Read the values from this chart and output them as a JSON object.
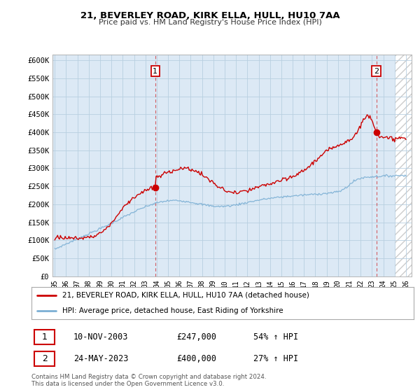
{
  "title": "21, BEVERLEY ROAD, KIRK ELLA, HULL, HU10 7AA",
  "subtitle": "Price paid vs. HM Land Registry's House Price Index (HPI)",
  "ylabel_ticks": [
    "£0",
    "£50K",
    "£100K",
    "£150K",
    "£200K",
    "£250K",
    "£300K",
    "£350K",
    "£400K",
    "£450K",
    "£500K",
    "£550K",
    "£600K"
  ],
  "ytick_values": [
    0,
    50000,
    100000,
    150000,
    200000,
    250000,
    300000,
    350000,
    400000,
    450000,
    500000,
    550000,
    600000
  ],
  "ylim": [
    0,
    615000
  ],
  "xlim_start": 1995.0,
  "xlim_end": 2026.5,
  "red_line_color": "#cc0000",
  "blue_line_color": "#7bafd4",
  "plot_bg_color": "#dce9f5",
  "sale1_x": 2003.87,
  "sale1_y": 247000,
  "sale2_x": 2023.38,
  "sale2_y": 400000,
  "legend_line1": "21, BEVERLEY ROAD, KIRK ELLA, HULL, HU10 7AA (detached house)",
  "legend_line2": "HPI: Average price, detached house, East Riding of Yorkshire",
  "footnote_line1": "Contains HM Land Registry data © Crown copyright and database right 2024.",
  "footnote_line2": "This data is licensed under the Open Government Licence v3.0.",
  "table_row1_date": "10-NOV-2003",
  "table_row1_price": "£247,000",
  "table_row1_hpi": "54% ↑ HPI",
  "table_row2_date": "24-MAY-2023",
  "table_row2_price": "£400,000",
  "table_row2_hpi": "27% ↑ HPI",
  "background_color": "#ffffff",
  "grid_color": "#b8cfe0"
}
